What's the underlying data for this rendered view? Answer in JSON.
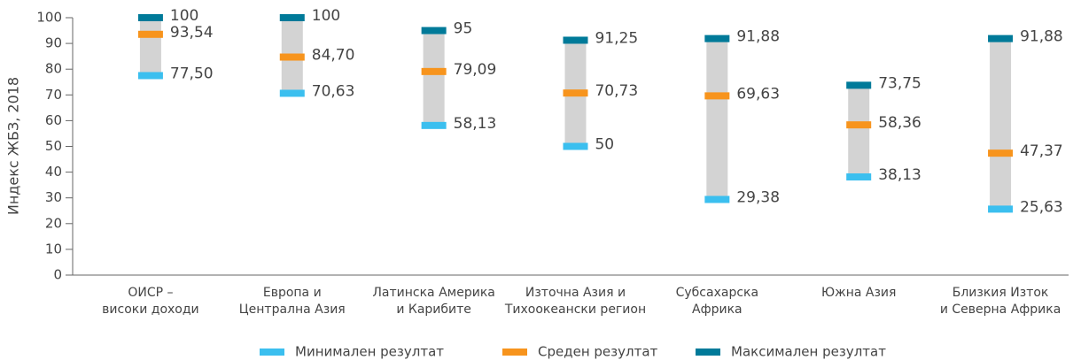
{
  "chart_data": {
    "type": "range",
    "y_label": "Индекс ЖБЗ, 2018",
    "categories": [
      [
        "ОИСР –",
        "високи доходи"
      ],
      [
        "Европа и",
        "Централна Азия"
      ],
      [
        "Латинска Америка",
        "и Карибите"
      ],
      [
        "Източна Азия и",
        "Тихоокеански регион"
      ],
      [
        "Субсахарска",
        "Африка"
      ],
      [
        "Южна Азия"
      ],
      [
        "Близкия Изток",
        "и Северна Африка"
      ]
    ],
    "series": [
      {
        "name": "Минимален резултат",
        "color": "#3bbfef",
        "values": [
          77.5,
          70.63,
          58.13,
          50,
          29.38,
          38.13,
          25.63
        ],
        "value_labels": [
          "77,50",
          "70,63",
          "58,13",
          "50",
          "29,38",
          "38,13",
          "25,63"
        ]
      },
      {
        "name": "Среден резултат",
        "color": "#f7941d",
        "values": [
          93.54,
          84.7,
          79.09,
          70.73,
          69.63,
          58.36,
          47.37
        ],
        "value_labels": [
          "93,54",
          "84,70",
          "79,09",
          "70,73",
          "69,63",
          "58,36",
          "47,37"
        ]
      },
      {
        "name": "Максимален резултат",
        "color": "#007a99",
        "values": [
          100,
          100,
          95,
          91.25,
          91.88,
          73.75,
          91.88
        ],
        "value_labels": [
          "100",
          "100",
          "95",
          "91,25",
          "91,88",
          "73,75",
          "91,88"
        ]
      }
    ],
    "range_color": "#d3d3d3",
    "ylim": [
      0,
      100
    ],
    "yticks": [
      0,
      10,
      20,
      30,
      40,
      50,
      60,
      70,
      80,
      90,
      100
    ]
  }
}
